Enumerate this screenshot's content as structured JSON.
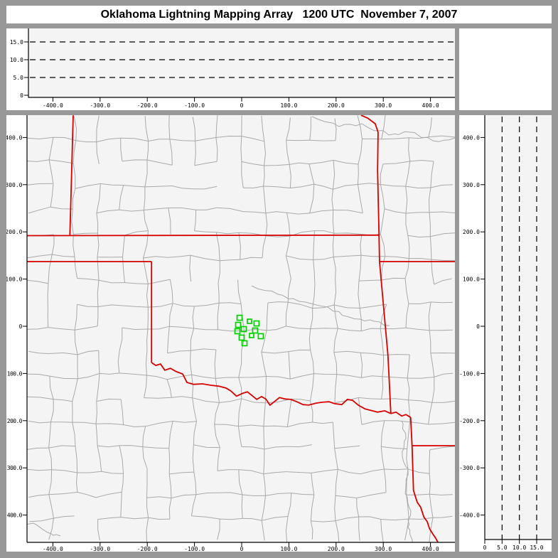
{
  "window": {
    "title": "Oklahoma Lightning Mapping Array   1200 UTC  November 7, 2007"
  },
  "colors": {
    "frame": "#989898",
    "panel_bg": "#ffffff",
    "plot_bg": "#f4f4f4",
    "axis": "#000000",
    "grid_dash": "#000000",
    "county_line": "#a9a9a9",
    "state_border": "#d60000",
    "station": "#00d300"
  },
  "chart_data": {
    "type": "scatter",
    "title": "Oklahoma Lightning Mapping Array   1200 UTC  November 7, 2007",
    "datetime_label": "1200 UTC  November 7, 2007",
    "panels": {
      "altitude_ew": {
        "description": "Altitude (km) vs East-West distance (km); no lightning sources plotted",
        "x_ticks": {
          "values": [
            -400,
            -300,
            -200,
            -100,
            0,
            100,
            200,
            300,
            400
          ],
          "labels": [
            "-400.0",
            "-300.0",
            "-200.0",
            "-100.0",
            "0",
            "100.0",
            "200.0",
            "300.0",
            "400.0"
          ]
        },
        "y_ticks": {
          "values": [
            15,
            10,
            5,
            0
          ],
          "labels": [
            "15.0",
            "10.0",
            "5.0",
            "0"
          ]
        },
        "dashed_levels_km": [
          5,
          10,
          15
        ],
        "xlim": [
          -455,
          452
        ],
        "ylim": [
          0,
          19.5
        ],
        "points": []
      },
      "map": {
        "description": "Plan-view map, km from network center in central Oklahoma; gray county lines, red state borders, green LMA station squares",
        "x_ticks": {
          "values": [
            -400,
            -300,
            -200,
            -100,
            0,
            100,
            200,
            300,
            400
          ],
          "labels": [
            "-400.0",
            "-300.0",
            "-200.0",
            "-100.0",
            "0",
            "100.0",
            "200.0",
            "300.0",
            "400.0"
          ]
        },
        "y_ticks": {
          "values": [
            400,
            300,
            200,
            100,
            0,
            -100,
            -200,
            -300,
            -400
          ],
          "labels": [
            "400.0",
            "300.0",
            "200.0",
            "100.0",
            "0",
            "-100.0",
            "-200.0",
            "-300.0",
            "-400.0"
          ]
        },
        "xlim": [
          -455,
          452
        ],
        "ylim": [
          -460,
          447
        ],
        "stations_km": [
          [
            -4.5,
            18,
            7
          ],
          [
            -7.5,
            3,
            7
          ],
          [
            16.5,
            10.5,
            6
          ],
          [
            31.5,
            6,
            7
          ],
          [
            -9,
            -10.5,
            7
          ],
          [
            4.5,
            -6,
            7
          ],
          [
            28.5,
            -9,
            7
          ],
          [
            0,
            -24,
            7
          ],
          [
            21,
            -19.5,
            6
          ],
          [
            40.5,
            -21,
            7
          ],
          [
            6,
            -36,
            7
          ]
        ],
        "state_borders_km": [
          {
            "name": "colorado-kansas",
            "pts": [
              [
                -357,
                447
              ],
              [
                -364,
                192
              ]
            ]
          },
          {
            "name": "kansas-oklahoma-37N",
            "pts": [
              [
                -455,
                192
              ],
              [
                291,
                193
              ]
            ]
          },
          {
            "name": "panhandle-south-36p5N",
            "pts": [
              [
                -455,
                137
              ],
              [
                -191,
                137
              ]
            ]
          },
          {
            "name": "texas-panhandle-east-100W",
            "pts": [
              [
                -191,
                137
              ],
              [
                -191,
                -77
              ]
            ]
          },
          {
            "name": "red-river-oklahoma-texas",
            "pts": [
              [
                -191,
                -77
              ],
              [
                -182,
                -83
              ],
              [
                -172,
                -80
              ],
              [
                -163,
                -93
              ],
              [
                -151,
                -89
              ],
              [
                -139,
                -96
              ],
              [
                -125,
                -101
              ],
              [
                -116,
                -119
              ],
              [
                -102,
                -123
              ],
              [
                -83,
                -122
              ],
              [
                -65,
                -125
              ],
              [
                -48,
                -127
              ],
              [
                -33,
                -131
              ],
              [
                -23,
                -137
              ],
              [
                -11,
                -148
              ],
              [
                2,
                -142
              ],
              [
                12,
                -139
              ],
              [
                21,
                -146
              ],
              [
                32,
                -155
              ],
              [
                42,
                -149
              ],
              [
                51,
                -154
              ],
              [
                60,
                -167
              ],
              [
                69,
                -160
              ],
              [
                80,
                -151
              ],
              [
                92,
                -154
              ],
              [
                104,
                -155
              ],
              [
                117,
                -160
              ],
              [
                130,
                -166
              ],
              [
                142,
                -167
              ],
              [
                157,
                -163
              ],
              [
                170,
                -161
              ],
              [
                185,
                -160
              ],
              [
                197,
                -164
              ],
              [
                212,
                -166
              ],
              [
                224,
                -155
              ],
              [
                235,
                -157
              ],
              [
                247,
                -167
              ],
              [
                261,
                -175
              ],
              [
                273,
                -178
              ],
              [
                288,
                -182
              ],
              [
                303,
                -179
              ],
              [
                316,
                -185
              ]
            ]
          },
          {
            "name": "missouri-west",
            "pts": [
              [
                253,
                447
              ],
              [
                267,
                441
              ],
              [
                283,
                429
              ],
              [
                289,
                411
              ],
              [
                288,
                330
              ],
              [
                291,
                194
              ],
              [
                292,
                137
              ]
            ]
          },
          {
            "name": "missouri-arkansas-36p5N",
            "pts": [
              [
                292,
                137
              ],
              [
                452,
                137
              ]
            ]
          },
          {
            "name": "oklahoma-arkansas",
            "pts": [
              [
                292,
                137
              ],
              [
                310,
                -62
              ],
              [
                313,
                -122
              ],
              [
                316,
                -185
              ]
            ]
          },
          {
            "name": "red-river-east",
            "pts": [
              [
                316,
                -185
              ],
              [
                327,
                -182
              ],
              [
                339,
                -190
              ],
              [
                348,
                -187
              ],
              [
                358,
                -193
              ]
            ]
          },
          {
            "name": "texas-arkansas",
            "pts": [
              [
                358,
                -193
              ],
              [
                361,
                -253
              ]
            ]
          },
          {
            "name": "arkansas-louisiana-33N",
            "pts": [
              [
                361,
                -253
              ],
              [
                452,
                -253
              ]
            ]
          },
          {
            "name": "texas-louisiana",
            "pts": [
              [
                361,
                -253
              ],
              [
                364,
                -348
              ],
              [
                372,
                -373
              ],
              [
                379,
                -383
              ],
              [
                386,
                -404
              ],
              [
                393,
                -414
              ],
              [
                398,
                -429
              ],
              [
                405,
                -440
              ],
              [
                411,
                -449
              ],
              [
                416,
                -458
              ]
            ]
          }
        ]
      },
      "altitude_ns": {
        "description": "North-South distance (km) vs altitude (km); no lightning sources plotted",
        "x_ticks": {
          "values": [
            0,
            5,
            10,
            15
          ],
          "labels": [
            "0",
            "5.0",
            "10.0",
            "15.0"
          ]
        },
        "y_ticks": {
          "values": [
            400,
            300,
            200,
            100,
            0,
            -100,
            -200,
            -300,
            -400
          ],
          "labels": [
            "400.0",
            "300.0",
            "200.0",
            "100.0",
            "0",
            "-100.0",
            "-200.0",
            "-300.0",
            "-400.0"
          ]
        },
        "dashed_levels_km": [
          5,
          10,
          15
        ],
        "xlim": [
          0,
          19.3
        ],
        "ylim": [
          -460,
          447
        ],
        "points": []
      }
    }
  }
}
